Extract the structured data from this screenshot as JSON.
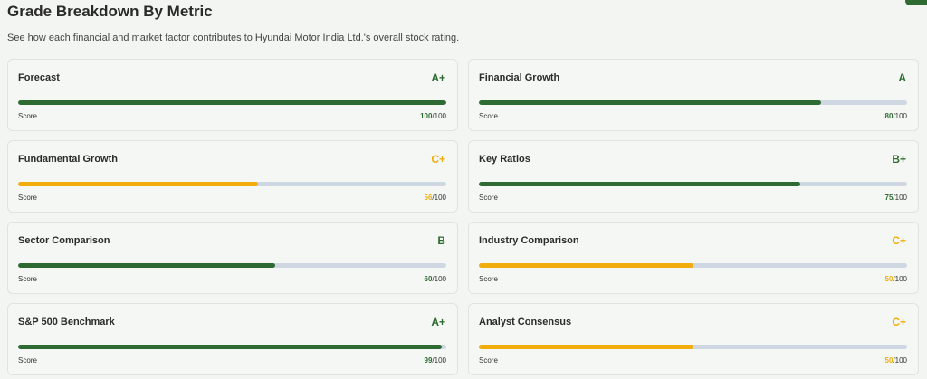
{
  "header": {
    "title": "Grade Breakdown By Metric",
    "subtitle": "See how each financial and market factor contributes to Hyundai Motor India Ltd.'s overall stock rating."
  },
  "colors": {
    "good": "#2e6b32",
    "average": "#f0ad0c",
    "track": "#cfd8e2"
  },
  "score_label": "Score",
  "score_max_text": "/100",
  "metrics": [
    {
      "name": "Forecast",
      "grade": "A+",
      "score": 100,
      "level": "good"
    },
    {
      "name": "Financial Growth",
      "grade": "A",
      "score": 80,
      "level": "good"
    },
    {
      "name": "Fundamental Growth",
      "grade": "C+",
      "score": 56,
      "level": "average"
    },
    {
      "name": "Key Ratios",
      "grade": "B+",
      "score": 75,
      "level": "good"
    },
    {
      "name": "Sector Comparison",
      "grade": "B",
      "score": 60,
      "level": "good"
    },
    {
      "name": "Industry Comparison",
      "grade": "C+",
      "score": 50,
      "level": "average"
    },
    {
      "name": "S&P 500 Benchmark",
      "grade": "A+",
      "score": 99,
      "level": "good"
    },
    {
      "name": "Analyst Consensus",
      "grade": "C+",
      "score": 50,
      "level": "average"
    }
  ]
}
